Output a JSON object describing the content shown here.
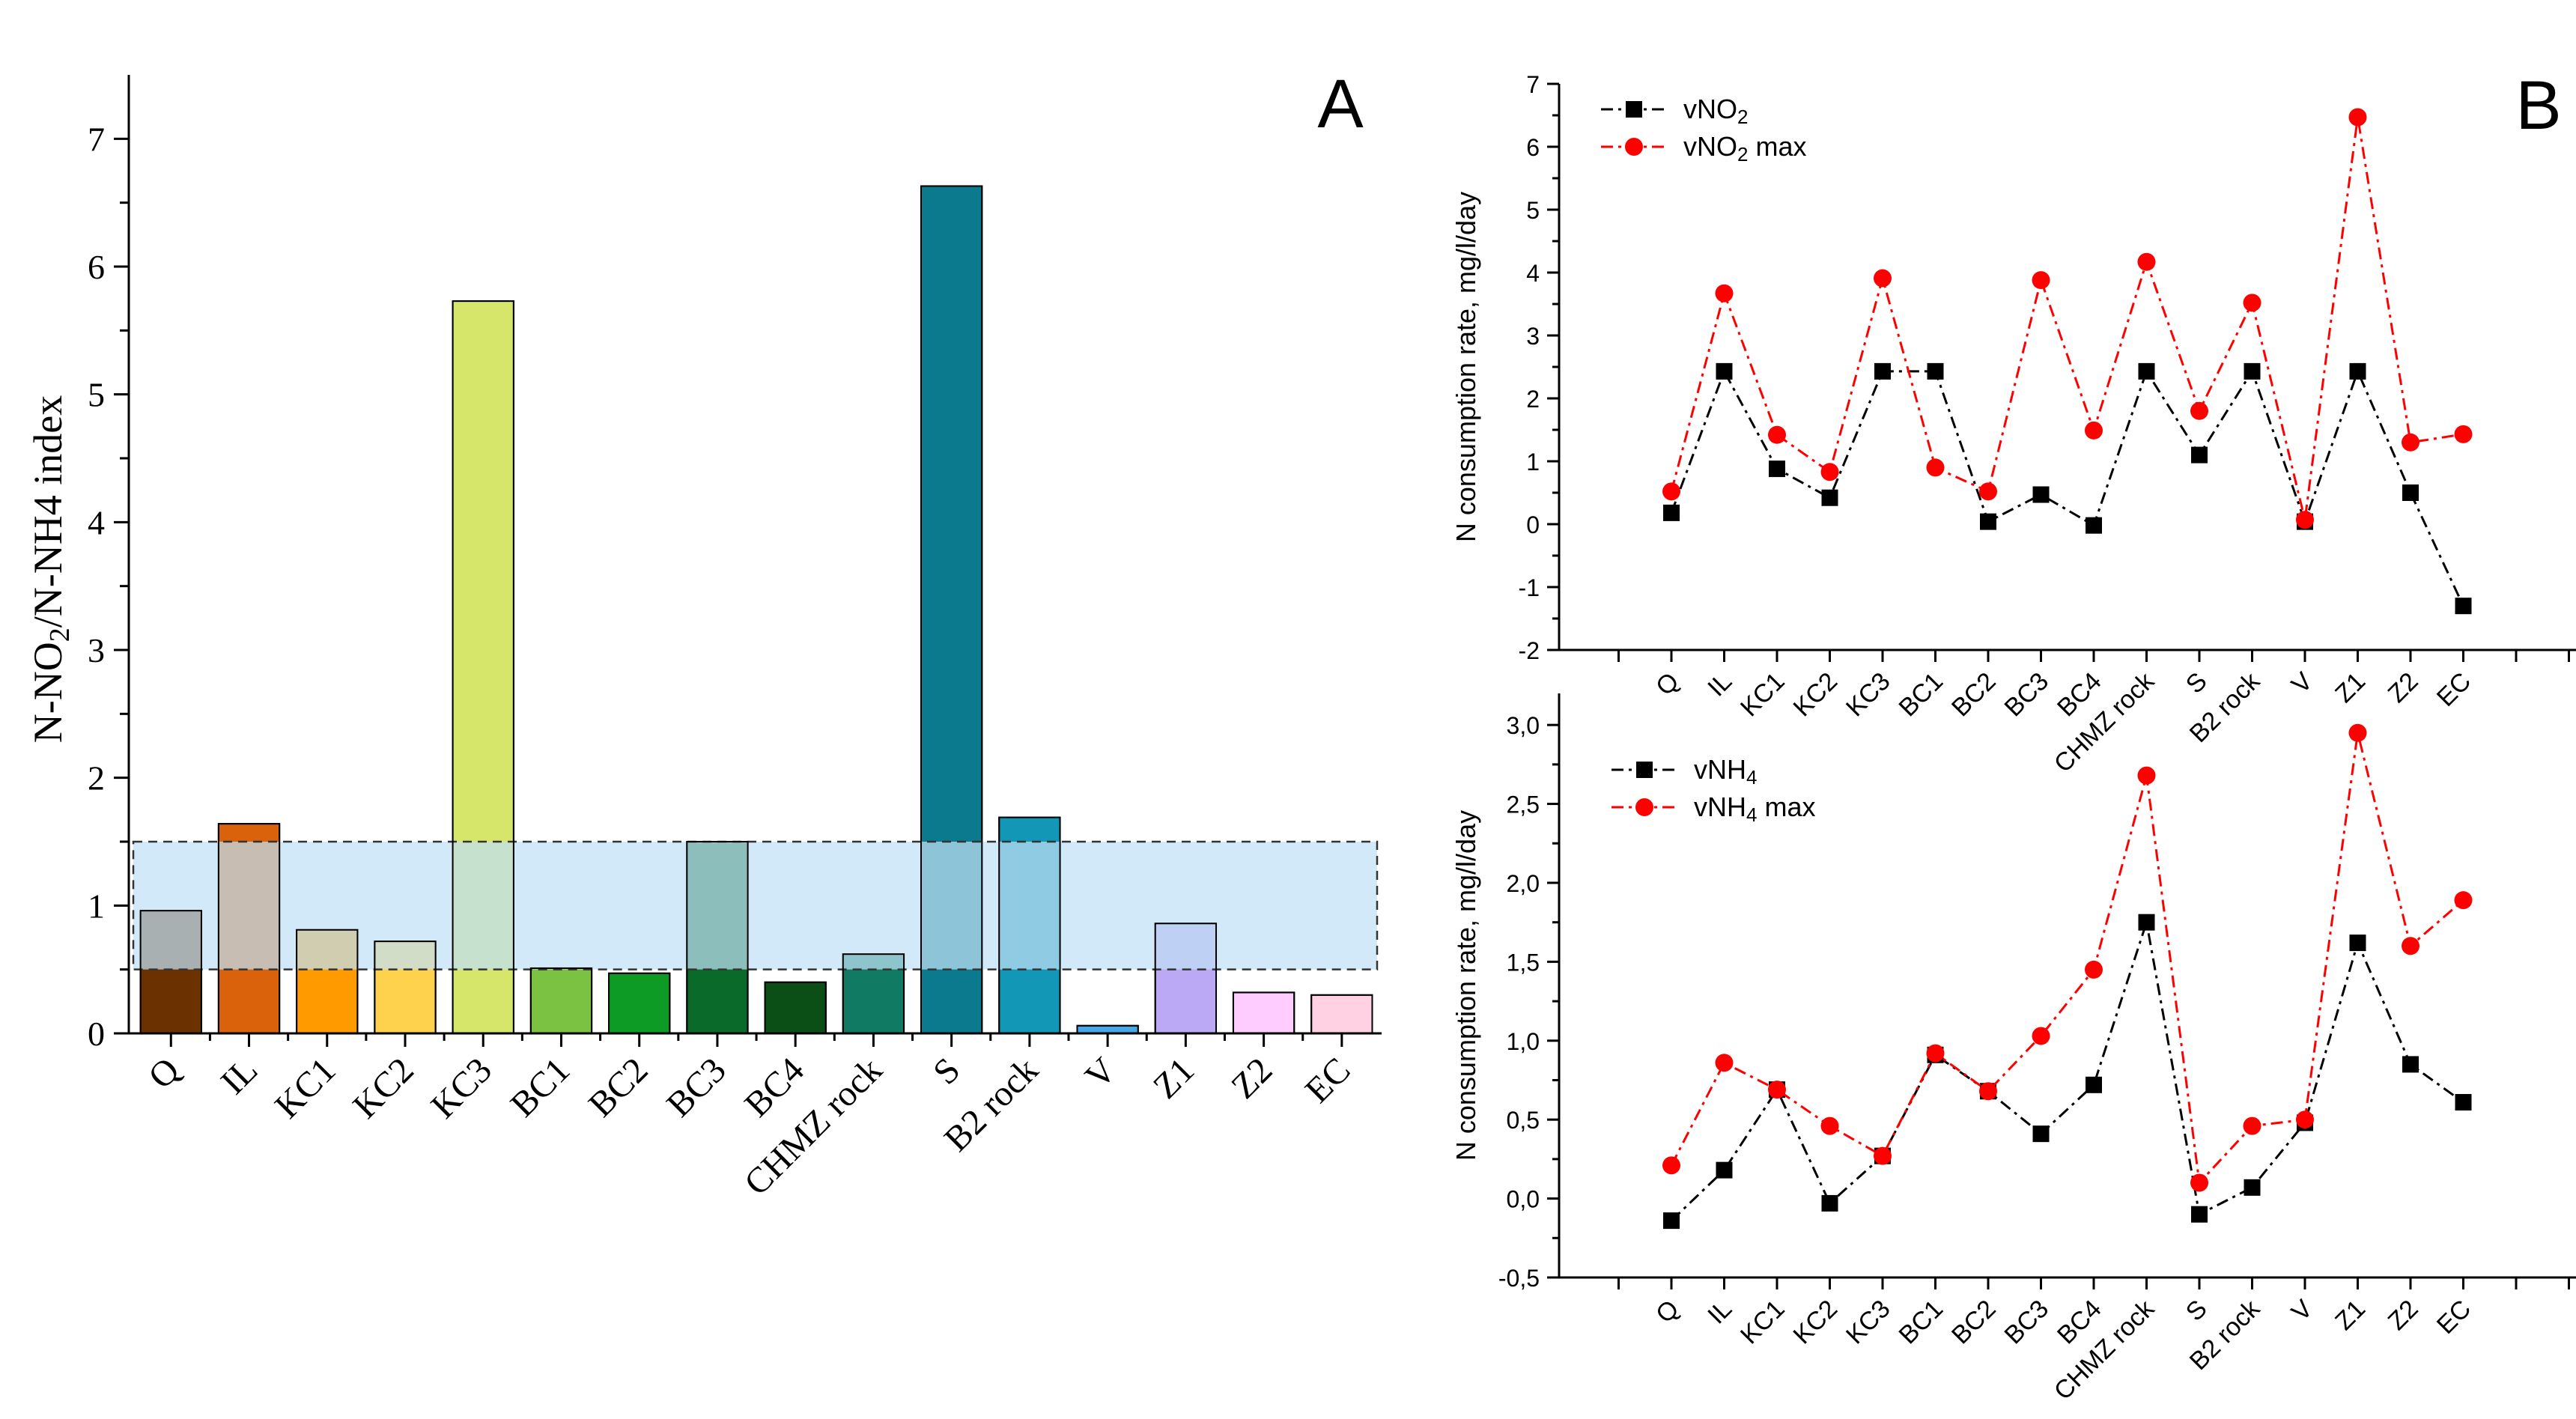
{
  "chart_data": [
    {
      "id": "A",
      "type": "bar",
      "panel_label": "A",
      "ylabel_parts": [
        "N-NO",
        "2",
        "/N-NH",
        "4",
        " index"
      ],
      "ylim": [
        0,
        7.5
      ],
      "yticks": [
        "0",
        "1",
        "2",
        "3",
        "4",
        "5",
        "6",
        "7"
      ],
      "categories": [
        "Q",
        "IL",
        "KC1",
        "KC2",
        "KC3",
        "BC1",
        "BC2",
        "BC3",
        "BC4",
        "CHMZ rock",
        "S",
        "B2 rock",
        "V",
        "Z1",
        "Z2",
        "EC"
      ],
      "values": [
        0.96,
        1.64,
        0.81,
        0.72,
        5.73,
        0.51,
        0.47,
        1.5,
        0.4,
        0.62,
        6.63,
        1.69,
        0.06,
        0.86,
        0.32,
        0.3
      ],
      "bar_colors": [
        "#6b3200",
        "#d9620a",
        "#ff9a00",
        "#ffd24d",
        "#d6e66b",
        "#7bc142",
        "#0d9b26",
        "#0a6a2a",
        "#0b4f17",
        "#107a62",
        "#0b7a8e",
        "#1297b7",
        "#46a8e6",
        "#bba9f5",
        "#ffccff",
        "#ffd1e3"
      ],
      "shaded_band": [
        0.5,
        1.5
      ],
      "band_color": "#bfe0f5"
    },
    {
      "id": "B1",
      "type": "line",
      "panel_label": "B",
      "ylabel": "N consumption rate, mg/l/day",
      "ylim": [
        -2,
        7
      ],
      "yticks": [
        "-2",
        "-1",
        "0",
        "1",
        "2",
        "3",
        "4",
        "5",
        "6",
        "7"
      ],
      "categories": [
        "Q",
        "IL",
        "KC1",
        "KC2",
        "KC3",
        "BC1",
        "BC2",
        "BC3",
        "BC4",
        "CHMZ rock",
        "S",
        "B2 rock",
        "V",
        "Z1",
        "Z2",
        "EC"
      ],
      "series": [
        {
          "name": "vNO2",
          "legend_parts": [
            "vNO",
            "2",
            ""
          ],
          "color": "#000000",
          "marker": "square",
          "values": [
            0.18,
            2.43,
            0.88,
            0.42,
            2.43,
            2.43,
            0.04,
            0.47,
            -0.02,
            2.43,
            1.1,
            2.43,
            0.04,
            2.43,
            0.5,
            -1.3
          ]
        },
        {
          "name": "vNO2 max",
          "legend_parts": [
            "vNO",
            "2",
            " max"
          ],
          "color": "#ff0000",
          "marker": "circle",
          "values": [
            0.52,
            3.67,
            1.42,
            0.83,
            3.91,
            0.9,
            0.52,
            3.88,
            1.49,
            4.17,
            1.8,
            3.52,
            0.07,
            6.47,
            1.3,
            1.43
          ]
        }
      ]
    },
    {
      "id": "B2",
      "type": "line",
      "ylabel": "N consumption rate, mg/l/day",
      "ylim": [
        -0.5,
        3.2
      ],
      "yticks": [
        "-0,5",
        "0,0",
        "0,5",
        "1,0",
        "1,5",
        "2,0",
        "2,5",
        "3,0"
      ],
      "categories": [
        "Q",
        "IL",
        "KC1",
        "KC2",
        "KC3",
        "BC1",
        "BC2",
        "BC3",
        "BC4",
        "CHMZ rock",
        "S",
        "B2 rock",
        "V",
        "Z1",
        "Z2",
        "EC"
      ],
      "series": [
        {
          "name": "vNH4",
          "legend_parts": [
            "vNH",
            "4",
            ""
          ],
          "color": "#000000",
          "marker": "square",
          "values": [
            -0.14,
            0.18,
            0.69,
            -0.03,
            0.27,
            0.91,
            0.68,
            0.41,
            0.72,
            1.75,
            -0.1,
            0.07,
            0.48,
            1.62,
            0.85,
            0.61
          ]
        },
        {
          "name": "vNH4 max",
          "legend_parts": [
            "vNH",
            "4",
            " max"
          ],
          "color": "#ff0000",
          "marker": "circle",
          "values": [
            0.21,
            0.86,
            0.69,
            0.46,
            0.27,
            0.92,
            0.68,
            1.03,
            1.45,
            2.68,
            0.1,
            0.46,
            0.5,
            2.95,
            1.6,
            1.89
          ]
        }
      ]
    }
  ]
}
